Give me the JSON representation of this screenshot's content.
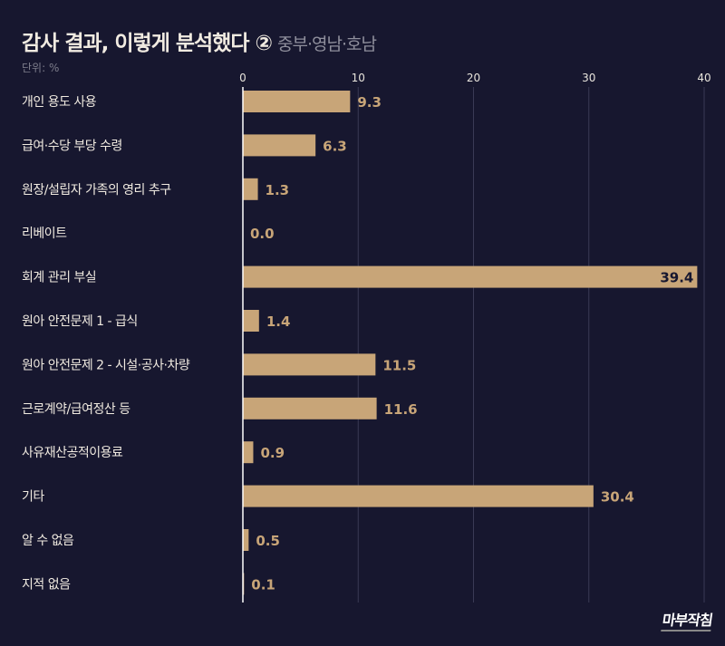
{
  "title": "감사 결과, 이렇게 분석했다 ②",
  "subtitle": "중부·영남·호남",
  "unit": "단위: %",
  "logo": "마부작침",
  "colors": {
    "background": "#17172f",
    "bar": "#c8a578",
    "text": "#f1ebe1",
    "grid": "#3a3a55"
  },
  "chart_data": {
    "type": "bar",
    "orientation": "horizontal",
    "categories": [
      "개인 용도 사용",
      "급여·수당 부당 수령",
      "원장/설립자 가족의 영리 추구",
      "리베이트",
      "회계 관리 부실",
      "원아 안전문제 1 - 급식",
      "원아 안전문제 2 - 시설·공사·차량",
      "근로계약/급여정산 등",
      "사유재산공적이용료",
      "기타",
      "알 수 없음",
      "지적 없음"
    ],
    "values": [
      9.3,
      6.3,
      1.3,
      0.0,
      39.4,
      1.4,
      11.5,
      11.6,
      0.9,
      30.4,
      0.5,
      0.1
    ],
    "value_labels": [
      "9.3",
      "6.3",
      "1.3",
      "0.0",
      "39.4",
      "1.4",
      "11.5",
      "11.6",
      "0.9",
      "30.4",
      "0.5",
      "0.1"
    ],
    "xlim": [
      0,
      40
    ],
    "xticks": [
      0,
      10,
      20,
      30,
      40
    ],
    "xtick_labels": [
      "0",
      "10",
      "20",
      "30",
      "40"
    ],
    "axis_position": "top",
    "grid": true
  }
}
